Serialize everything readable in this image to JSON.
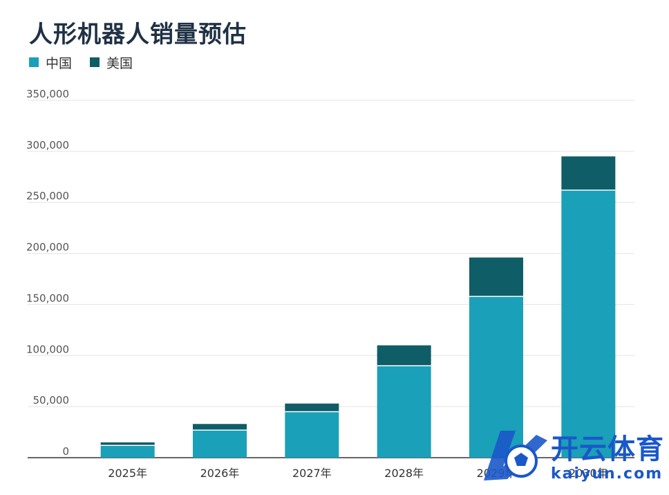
{
  "title": "人形机器人销量预估",
  "legend": [
    {
      "label": "中国",
      "color": "#1aa0b8"
    },
    {
      "label": "美国",
      "color": "#0f5d66"
    }
  ],
  "chart_data": {
    "type": "bar",
    "stacked": true,
    "title": "人形机器人销量预估",
    "categories": [
      "2025年",
      "2026年",
      "2027年",
      "2028年",
      "2029年",
      "2030年"
    ],
    "series": [
      {
        "name": "中国",
        "color": "#1aa0b8",
        "values": [
          12000,
          27000,
          45000,
          90000,
          158000,
          262000
        ]
      },
      {
        "name": "美国",
        "color": "#0f5d66",
        "values": [
          3000,
          6000,
          8000,
          20000,
          38000,
          33000
        ]
      }
    ],
    "yticks": [
      "0",
      "50,000",
      "100,000",
      "150,000",
      "200,000",
      "250,000",
      "300,000",
      "350,000"
    ],
    "ylim": [
      0,
      350000
    ],
    "grid": true,
    "legend_position": "top-left"
  },
  "watermark": {
    "brand": "开云体育",
    "url": "kaiyun.com"
  }
}
